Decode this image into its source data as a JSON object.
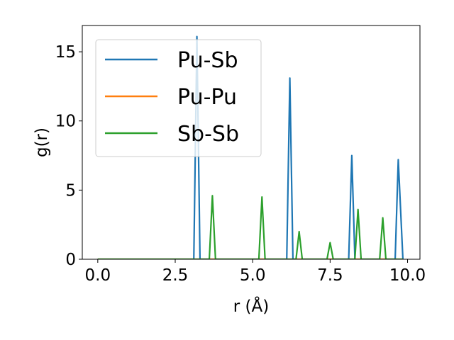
{
  "chart_data": {
    "type": "line",
    "title": "",
    "xlabel": "r (Å)",
    "ylabel": "g(r)",
    "xlim": [
      -0.5,
      10.4
    ],
    "ylim": [
      0,
      16.9
    ],
    "xticks": [
      0.0,
      2.5,
      5.0,
      7.5,
      10.0
    ],
    "xtick_labels": [
      "0.0",
      "2.5",
      "5.0",
      "7.5",
      "10.0"
    ],
    "yticks": [
      0,
      5,
      10,
      15
    ],
    "ytick_labels": [
      "0",
      "5",
      "10",
      "15"
    ],
    "grid": false,
    "legend_position": "top-left",
    "series": [
      {
        "name": "Pu-Sb",
        "color": "#1f77b4",
        "points": [
          [
            0,
            0
          ],
          [
            3.1,
            0
          ],
          [
            3.2,
            16.1
          ],
          [
            3.3,
            0
          ],
          [
            6.1,
            0
          ],
          [
            6.2,
            13.1
          ],
          [
            6.3,
            0
          ],
          [
            8.1,
            0
          ],
          [
            8.2,
            7.5
          ],
          [
            8.3,
            0
          ],
          [
            9.6,
            0
          ],
          [
            9.7,
            7.2
          ],
          [
            9.85,
            0
          ]
        ]
      },
      {
        "name": "Pu-Pu",
        "color": "#ff7f0e",
        "points": [
          [
            0,
            0
          ],
          [
            9.85,
            0
          ]
        ]
      },
      {
        "name": "Sb-Sb",
        "color": "#2ca02c",
        "points": [
          [
            0,
            0
          ],
          [
            3.6,
            0
          ],
          [
            3.7,
            4.6
          ],
          [
            3.8,
            0
          ],
          [
            5.2,
            0
          ],
          [
            5.3,
            4.5
          ],
          [
            5.4,
            0
          ],
          [
            6.4,
            0
          ],
          [
            6.5,
            2.0
          ],
          [
            6.6,
            0
          ],
          [
            7.4,
            0
          ],
          [
            7.5,
            1.2
          ],
          [
            7.6,
            0
          ],
          [
            8.3,
            0
          ],
          [
            8.4,
            3.6
          ],
          [
            8.5,
            0
          ],
          [
            9.1,
            0
          ],
          [
            9.2,
            3.0
          ],
          [
            9.3,
            0
          ],
          [
            9.85,
            0
          ]
        ]
      }
    ]
  }
}
